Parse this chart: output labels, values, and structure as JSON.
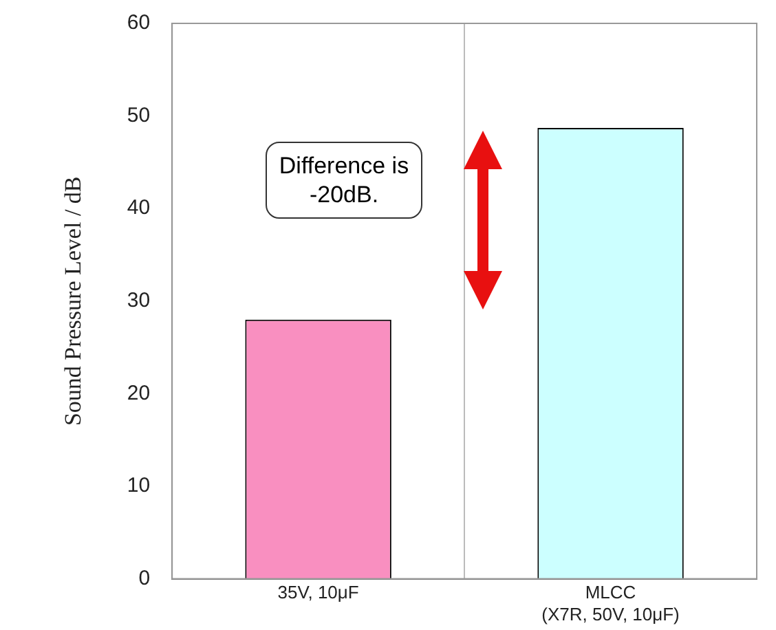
{
  "chart_data": {
    "type": "bar",
    "ylabel": "Sound Pressure Level / dB",
    "categories": [
      "35V, 10μF",
      "MLCC\n(X7R, 50V, 10μF)"
    ],
    "values": [
      28,
      48.7
    ],
    "colors": [
      "#f98fc0",
      "#ccffff"
    ],
    "ylim": [
      0,
      60
    ],
    "yticks": [
      0,
      10,
      20,
      30,
      40,
      50,
      60
    ],
    "grid": "x",
    "annotations": [
      "Difference is -20dB."
    ]
  }
}
